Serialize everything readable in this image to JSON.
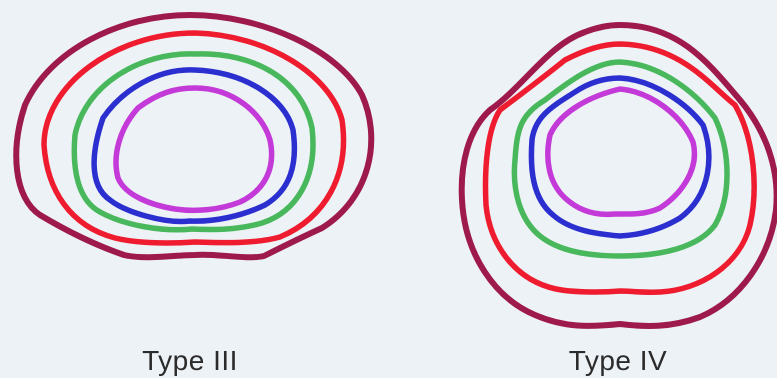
{
  "captions": {
    "left": "Type III",
    "right": "Type IV"
  },
  "colors": {
    "background": "#edf2f7",
    "ring_outer": "#9e1a4c",
    "ring_2": "#ee1c2e",
    "ring_3": "#49b85c",
    "ring_4": "#2b2fcf",
    "ring_inner": "#c33ad8"
  },
  "diagrams": [
    {
      "label": "Type III",
      "rings": [
        "#9e1a4c",
        "#ee1c2e",
        "#49b85c",
        "#2b2fcf",
        "#c33ad8"
      ]
    },
    {
      "label": "Type IV",
      "rings": [
        "#9e1a4c",
        "#ee1c2e",
        "#49b85c",
        "#2b2fcf",
        "#c33ad8"
      ]
    }
  ]
}
